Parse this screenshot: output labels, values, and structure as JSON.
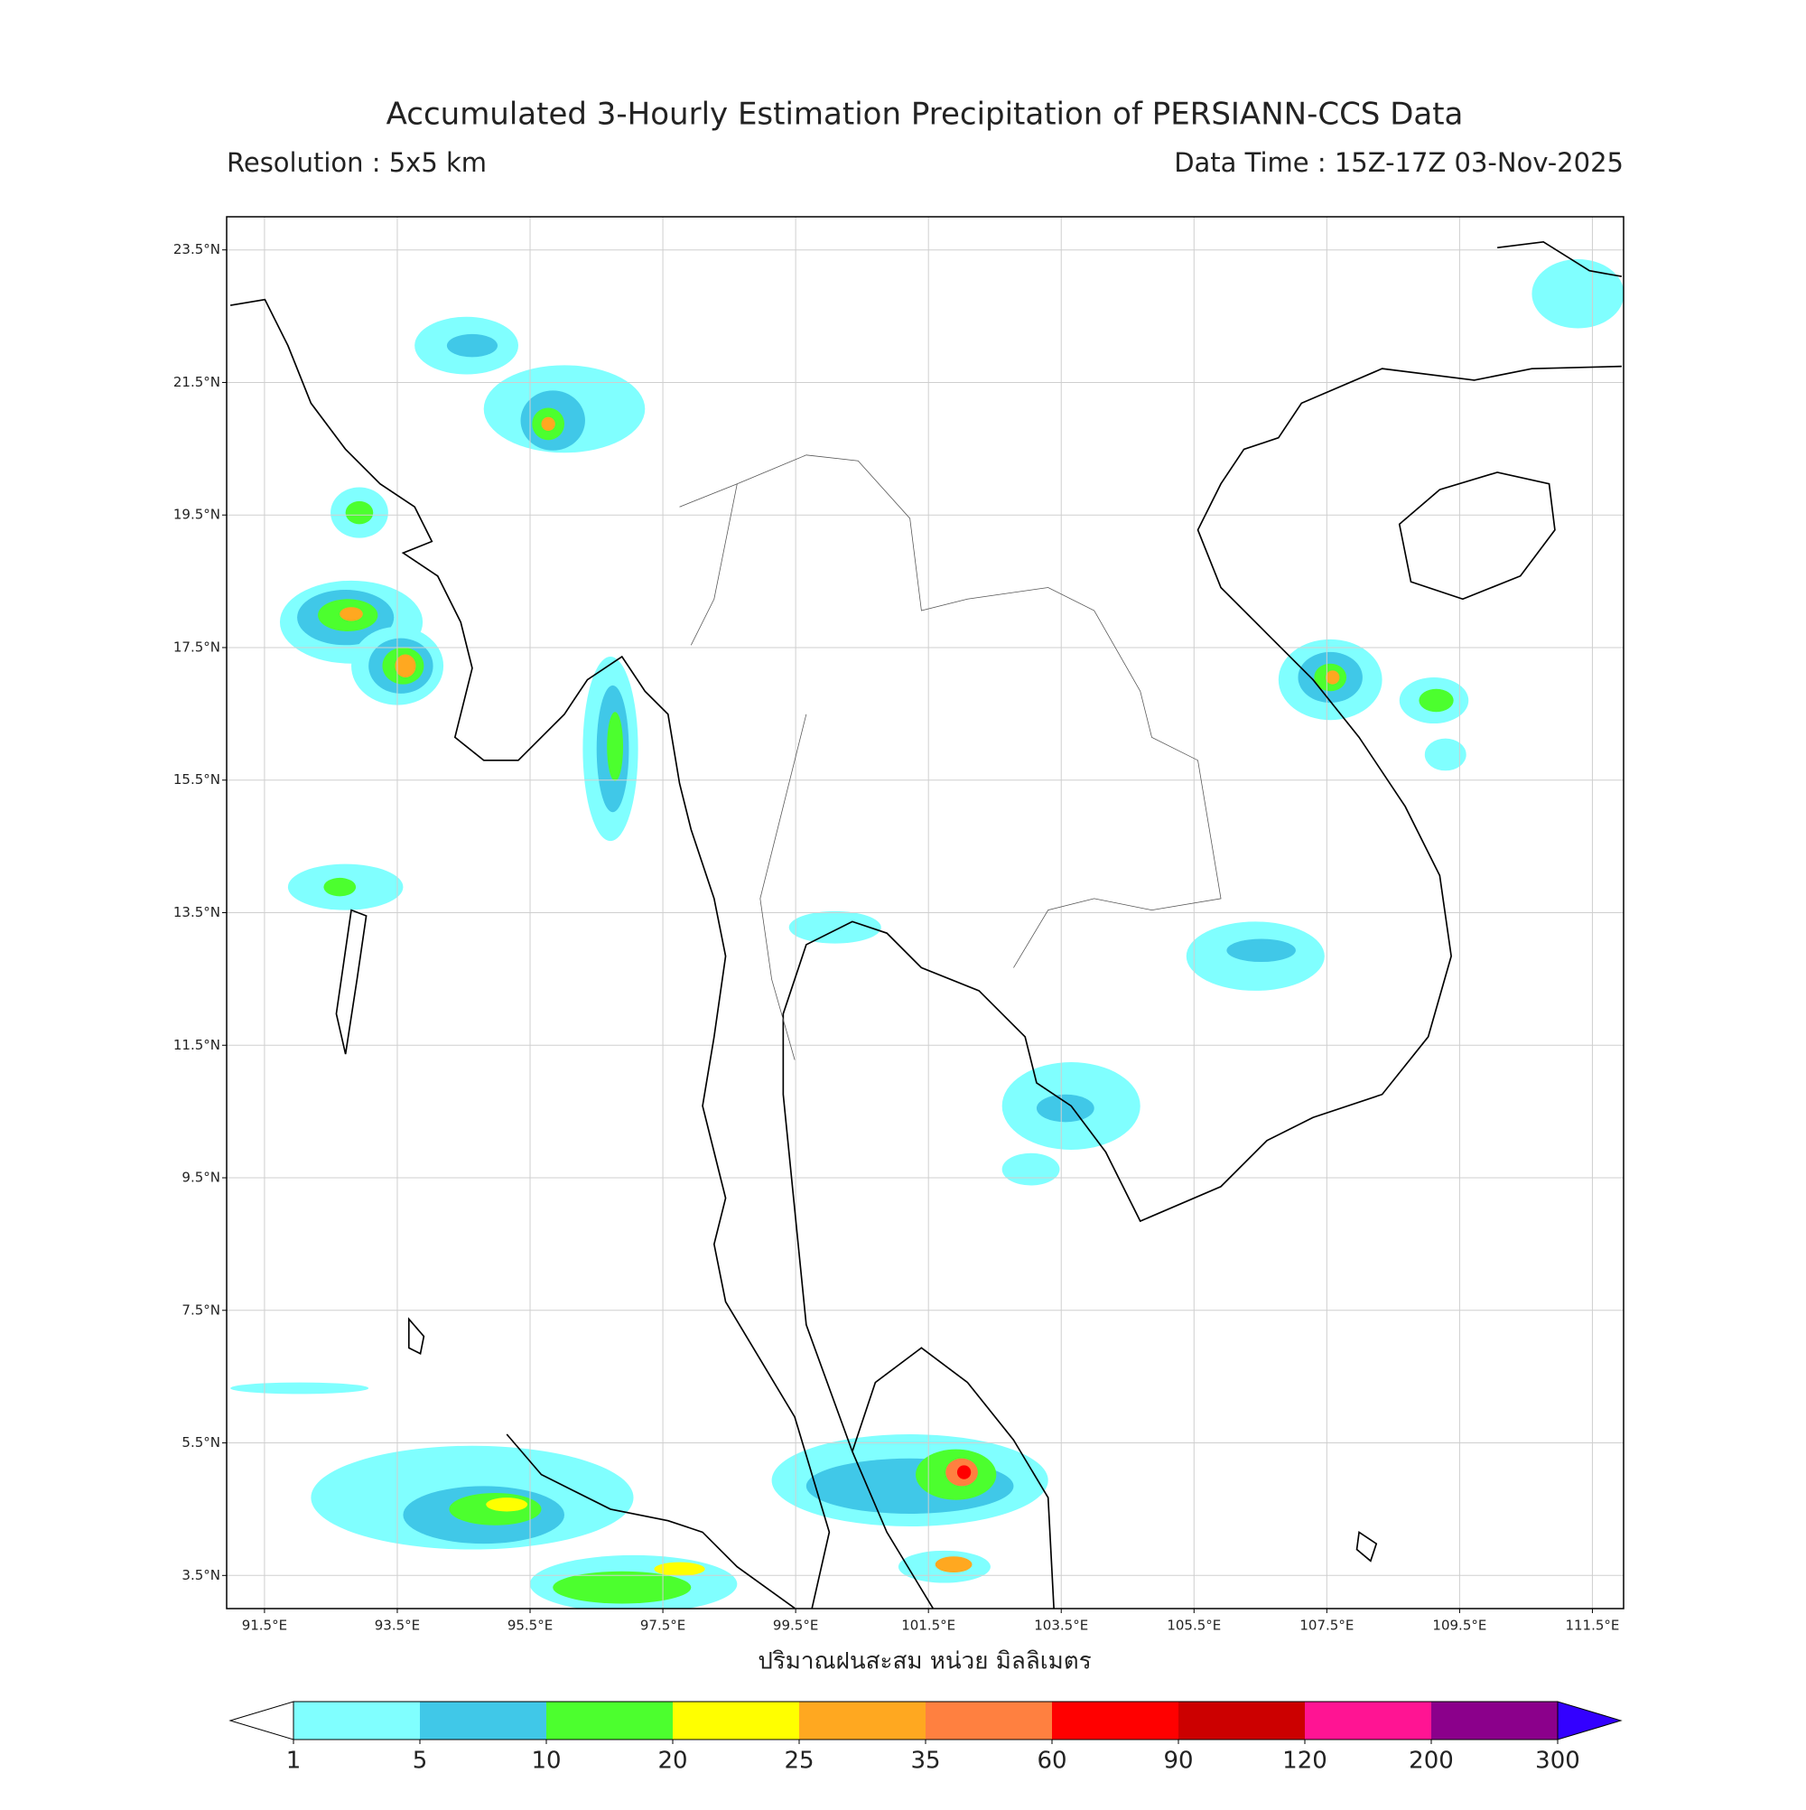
{
  "header": {
    "title": "Accumulated 3-Hourly Estimation Precipitation of PERSIANN-CCS Data",
    "resolution": "Resolution : 5x5 km",
    "data_time": "Data Time : 15Z-17Z 03-Nov-2025"
  },
  "map": {
    "xlim": [
      90.93,
      111.97
    ],
    "ylim": [
      3,
      24
    ],
    "grid": true,
    "xticks": [
      {
        "value": 91.5,
        "label": "91.5°E"
      },
      {
        "value": 93.5,
        "label": "93.5°E"
      },
      {
        "value": 95.5,
        "label": "95.5°E"
      },
      {
        "value": 97.5,
        "label": "97.5°E"
      },
      {
        "value": 99.5,
        "label": "99.5°E"
      },
      {
        "value": 101.5,
        "label": "101.5°E"
      },
      {
        "value": 103.5,
        "label": "103.5°E"
      },
      {
        "value": 105.5,
        "label": "105.5°E"
      },
      {
        "value": 107.5,
        "label": "107.5°E"
      },
      {
        "value": 109.5,
        "label": "109.5°E"
      },
      {
        "value": 111.5,
        "label": "111.5°E"
      }
    ],
    "yticks": [
      {
        "value": 23.5,
        "label": "23.5°N"
      },
      {
        "value": 21.5,
        "label": "21.5°N"
      },
      {
        "value": 19.5,
        "label": "19.5°N"
      },
      {
        "value": 17.5,
        "label": "17.5°N"
      },
      {
        "value": 15.5,
        "label": "15.5°N"
      },
      {
        "value": 13.5,
        "label": "13.5°N"
      },
      {
        "value": 11.5,
        "label": "11.5°N"
      },
      {
        "value": 9.5,
        "label": "9.5°N"
      },
      {
        "value": 7.5,
        "label": "7.5°N"
      },
      {
        "value": 5.5,
        "label": "5.5°N"
      },
      {
        "value": 3.5,
        "label": "3.5°N"
      }
    ],
    "xlabel": "ปริมาณฝนสะสม หน่วย มิลลิเมตร"
  },
  "colorbar": {
    "levels": [
      1,
      5,
      10,
      20,
      25,
      35,
      60,
      90,
      120,
      200,
      300
    ],
    "colors": [
      "#80ffff",
      "#40c8e8",
      "#4cff2e",
      "#ffff00",
      "#ffa820",
      "#ff8040",
      "#ff0000",
      "#cc0000",
      "#ff1493",
      "#8b008b"
    ],
    "under_color": "#ffffff",
    "over_color": "#3300ff"
  }
}
